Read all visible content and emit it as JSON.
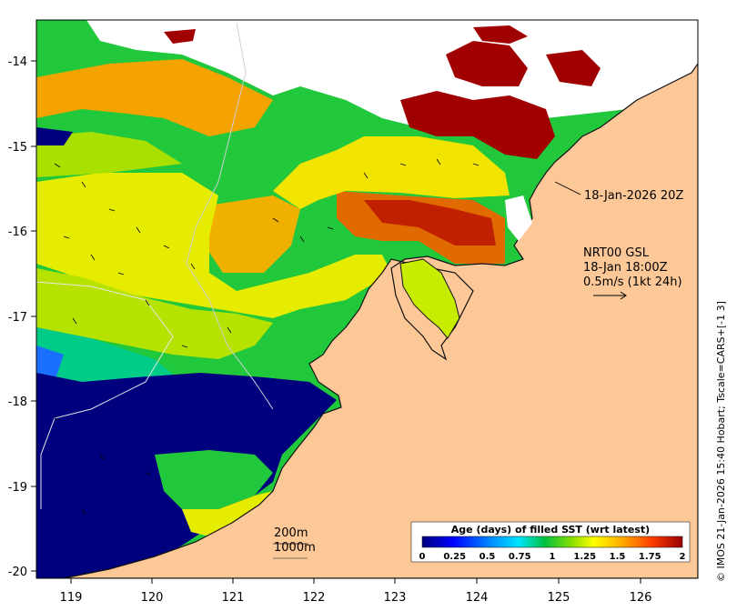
{
  "colors": {
    "land": "#fdc898",
    "cloud": "#ffffff",
    "coast": "#111111"
  },
  "axes": {
    "x_ticks": [
      "119",
      "120",
      "121",
      "122",
      "123",
      "124",
      "125",
      "126"
    ],
    "y_ticks": [
      "-14",
      "-15",
      "-16",
      "-17",
      "-18",
      "-19",
      "-20"
    ]
  },
  "annotations": {
    "pass_time": "18-Jan-2026 20Z",
    "model_line1": "NRT00 GSL",
    "model_line2": "18-Jan 18:00Z",
    "model_line3": "0.5m/s (1kt 24h)",
    "contour_200": "200m",
    "contour_1000": "1000m"
  },
  "colorbar": {
    "title": "Age (days) of filled SST (wrt latest)",
    "ticks": [
      "0",
      "0.25",
      "0.5",
      "0.75",
      "1",
      "1.25",
      "1.5",
      "1.75",
      "2"
    ],
    "stops": [
      "#00007f",
      "#0000ff",
      "#007fff",
      "#00e5ff",
      "#00c040",
      "#90e000",
      "#ffff00",
      "#ffa000",
      "#ff4000",
      "#9a0000"
    ]
  },
  "credit": "© IMOS 21-Jan-2026 15:40 Hobart; Tscale=CARS+[-1 3]"
}
